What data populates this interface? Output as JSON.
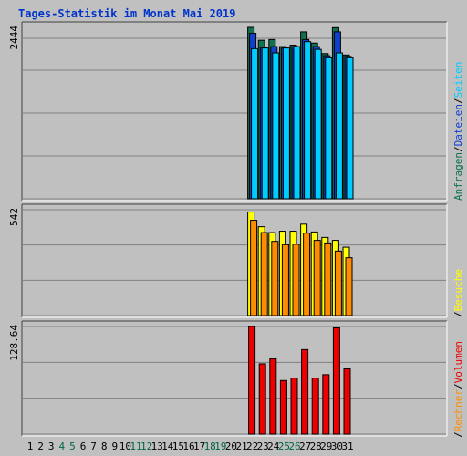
{
  "title": "Tages-Statistik im Monat Mai 2019",
  "colors": {
    "background": "#c0c0c0",
    "title": "#0033cc",
    "grid": "#808080",
    "frame_dark": "#404040",
    "frame_light": "#ffffff",
    "day_weekday": "#000000",
    "day_weekend": "#006644",
    "anfragen": "#107050",
    "dateien": "#1040d0",
    "seiten": "#00ccff",
    "besuche": "#ffff00",
    "rechner": "#ff8c00",
    "volumen": "#ee0000",
    "separator": "#000000"
  },
  "legend": {
    "top": [
      "Anfragen",
      "Dateien",
      "Seiten"
    ],
    "middle": [
      "Besuche"
    ],
    "bottom": [
      "Rechner",
      "Volumen"
    ],
    "separator": "/"
  },
  "chart_data": [
    {
      "type": "bar",
      "name": "hits",
      "y_max_label": "2444",
      "ylim": [
        0,
        2444
      ],
      "grid": true,
      "categories": [
        "1",
        "2",
        "3",
        "4",
        "5",
        "6",
        "7",
        "8",
        "9",
        "10",
        "11",
        "12",
        "13",
        "14",
        "15",
        "16",
        "17",
        "18",
        "19",
        "20",
        "21",
        "22",
        "23",
        "24",
        "25",
        "26",
        "27",
        "28",
        "29",
        "30",
        "31"
      ],
      "weekend_days": [
        "4",
        "5",
        "11",
        "12",
        "18",
        "19",
        "25",
        "26"
      ],
      "series": [
        {
          "name": "Anfragen",
          "color": "#107050",
          "values": [
            null,
            null,
            null,
            null,
            null,
            null,
            null,
            null,
            null,
            null,
            null,
            null,
            null,
            null,
            null,
            null,
            null,
            null,
            null,
            null,
            null,
            2444,
            2260,
            2270,
            2170,
            2190,
            2380,
            2220,
            2070,
            2440,
            2050
          ]
        },
        {
          "name": "Dateien",
          "color": "#1040d0",
          "values": [
            null,
            null,
            null,
            null,
            null,
            null,
            null,
            null,
            null,
            null,
            null,
            null,
            null,
            null,
            null,
            null,
            null,
            null,
            null,
            null,
            null,
            2360,
            2160,
            2170,
            2150,
            2170,
            2270,
            2170,
            2040,
            2380,
            2030
          ]
        },
        {
          "name": "Seiten",
          "color": "#00ccff",
          "values": [
            null,
            null,
            null,
            null,
            null,
            null,
            null,
            null,
            null,
            null,
            null,
            null,
            null,
            null,
            null,
            null,
            null,
            null,
            null,
            null,
            null,
            2140,
            2150,
            2080,
            2150,
            2170,
            2240,
            2130,
            2010,
            2080,
            2010
          ]
        }
      ]
    },
    {
      "type": "bar",
      "name": "visits",
      "y_max_label": "542",
      "ylim": [
        0,
        542
      ],
      "grid": true,
      "categories": [
        "1",
        "2",
        "3",
        "4",
        "5",
        "6",
        "7",
        "8",
        "9",
        "10",
        "11",
        "12",
        "13",
        "14",
        "15",
        "16",
        "17",
        "18",
        "19",
        "20",
        "21",
        "22",
        "23",
        "24",
        "25",
        "26",
        "27",
        "28",
        "29",
        "30",
        "31"
      ],
      "series": [
        {
          "name": "Besuche",
          "color": "#ffff00",
          "values": [
            null,
            null,
            null,
            null,
            null,
            null,
            null,
            null,
            null,
            null,
            null,
            null,
            null,
            null,
            null,
            null,
            null,
            null,
            null,
            null,
            null,
            530,
            455,
            425,
            432,
            432,
            468,
            428,
            400,
            385,
            350
          ]
        },
        {
          "name": "Rechner",
          "color": "#ff8c00",
          "values": [
            null,
            null,
            null,
            null,
            null,
            null,
            null,
            null,
            null,
            null,
            null,
            null,
            null,
            null,
            null,
            null,
            null,
            null,
            null,
            null,
            null,
            488,
            425,
            380,
            363,
            365,
            422,
            385,
            372,
            330,
            296
          ]
        }
      ]
    },
    {
      "type": "bar",
      "name": "volume",
      "y_max_label": "128.64",
      "ylim": [
        0,
        128.64
      ],
      "grid": true,
      "categories": [
        "1",
        "2",
        "3",
        "4",
        "5",
        "6",
        "7",
        "8",
        "9",
        "10",
        "11",
        "12",
        "13",
        "14",
        "15",
        "16",
        "17",
        "18",
        "19",
        "20",
        "21",
        "22",
        "23",
        "24",
        "25",
        "26",
        "27",
        "28",
        "29",
        "30",
        "31"
      ],
      "series": [
        {
          "name": "Volumen",
          "color": "#ee0000",
          "values": [
            null,
            null,
            null,
            null,
            null,
            null,
            null,
            null,
            null,
            null,
            null,
            null,
            null,
            null,
            null,
            null,
            null,
            null,
            null,
            null,
            null,
            128.64,
            84,
            90,
            64,
            67,
            101,
            67,
            71,
            127,
            78
          ]
        }
      ]
    }
  ]
}
